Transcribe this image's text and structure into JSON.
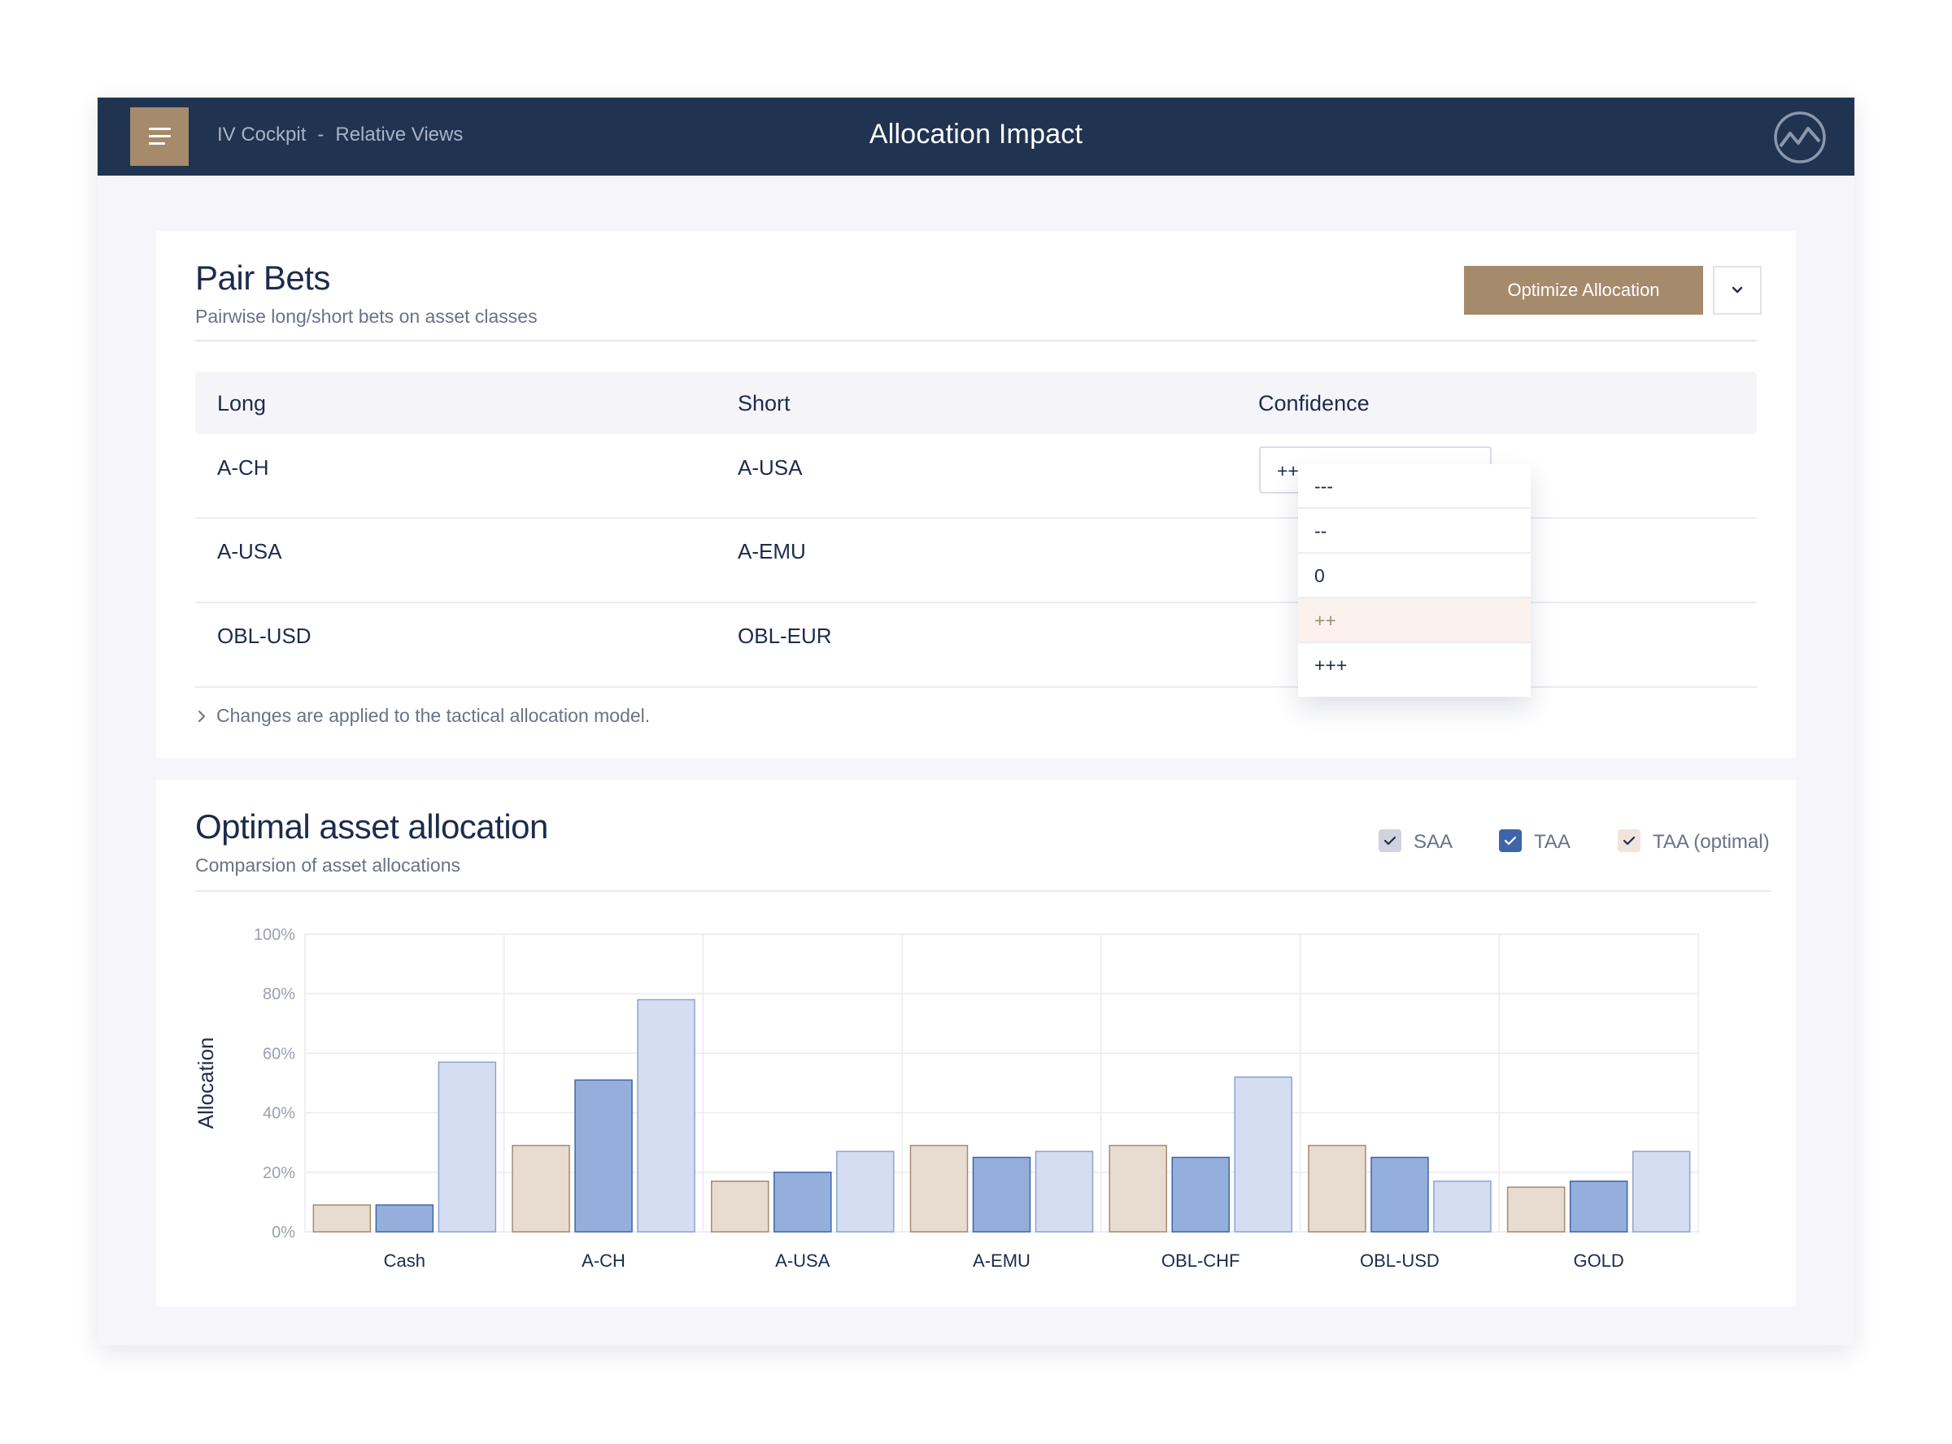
{
  "header": {
    "breadcrumb": [
      "IV Cockpit",
      "-",
      "Relative Views"
    ],
    "title": "Allocation Impact"
  },
  "pair_bets": {
    "title": "Pair Bets",
    "subtitle": "Pairwise long/short bets on asset classes",
    "optimize_label": "Optimize Allocation",
    "columns": [
      "Long",
      "Short",
      "Confidence"
    ],
    "rows": [
      {
        "long": "A-CH",
        "short": "A-USA",
        "confidence": "+++"
      },
      {
        "long": "A-USA",
        "short": "A-EMU"
      },
      {
        "long": "OBL-USD",
        "short": "OBL-EUR"
      }
    ],
    "confidence_options": [
      "---",
      "--",
      "0",
      "++",
      "+++"
    ],
    "hovered_option": "++",
    "note": "Changes are applied to the tactical allocation model."
  },
  "allocation": {
    "title": "Optimal asset allocation",
    "subtitle": "Comparsion of asset allocations",
    "legend": [
      {
        "label": "SAA",
        "checked": true,
        "color": "#d0d3dd"
      },
      {
        "label": "TAA",
        "checked": true,
        "color": "#3f65a8"
      },
      {
        "label": "TAA (optimal)",
        "checked": true,
        "color": "#f1e4dc"
      }
    ]
  },
  "colors": {
    "navy": "#203351",
    "accent": "#a58a6c",
    "series_saa": "#e8dcd1",
    "series_taa": "#95afdc",
    "series_opt": "#d4ddf1"
  },
  "chart_data": {
    "type": "bar",
    "ylabel": "Allocation",
    "xlabel": "",
    "ylim": [
      0,
      100
    ],
    "yticks": [
      "0%",
      "20%",
      "40%",
      "60%",
      "80%",
      "100%"
    ],
    "grid": true,
    "categories": [
      "Cash",
      "A-CH",
      "A-USA",
      "A-EMU",
      "OBL-CHF",
      "OBL-USD",
      "GOLD"
    ],
    "series": [
      {
        "name": "SAA",
        "values": [
          9,
          29,
          17,
          29,
          29,
          29,
          15
        ]
      },
      {
        "name": "TAA",
        "values": [
          9,
          51,
          20,
          25,
          25,
          25,
          17
        ]
      },
      {
        "name": "TAA (optimal)",
        "values": [
          57,
          78,
          27,
          27,
          52,
          17,
          27
        ]
      }
    ],
    "series_colors": [
      {
        "fill": "#e8dcd1",
        "stroke": "#a58a6c"
      },
      {
        "fill": "#95afdc",
        "stroke": "#3f65a8"
      },
      {
        "fill": "#d4ddf1",
        "stroke": "#8ea4d0"
      }
    ]
  }
}
